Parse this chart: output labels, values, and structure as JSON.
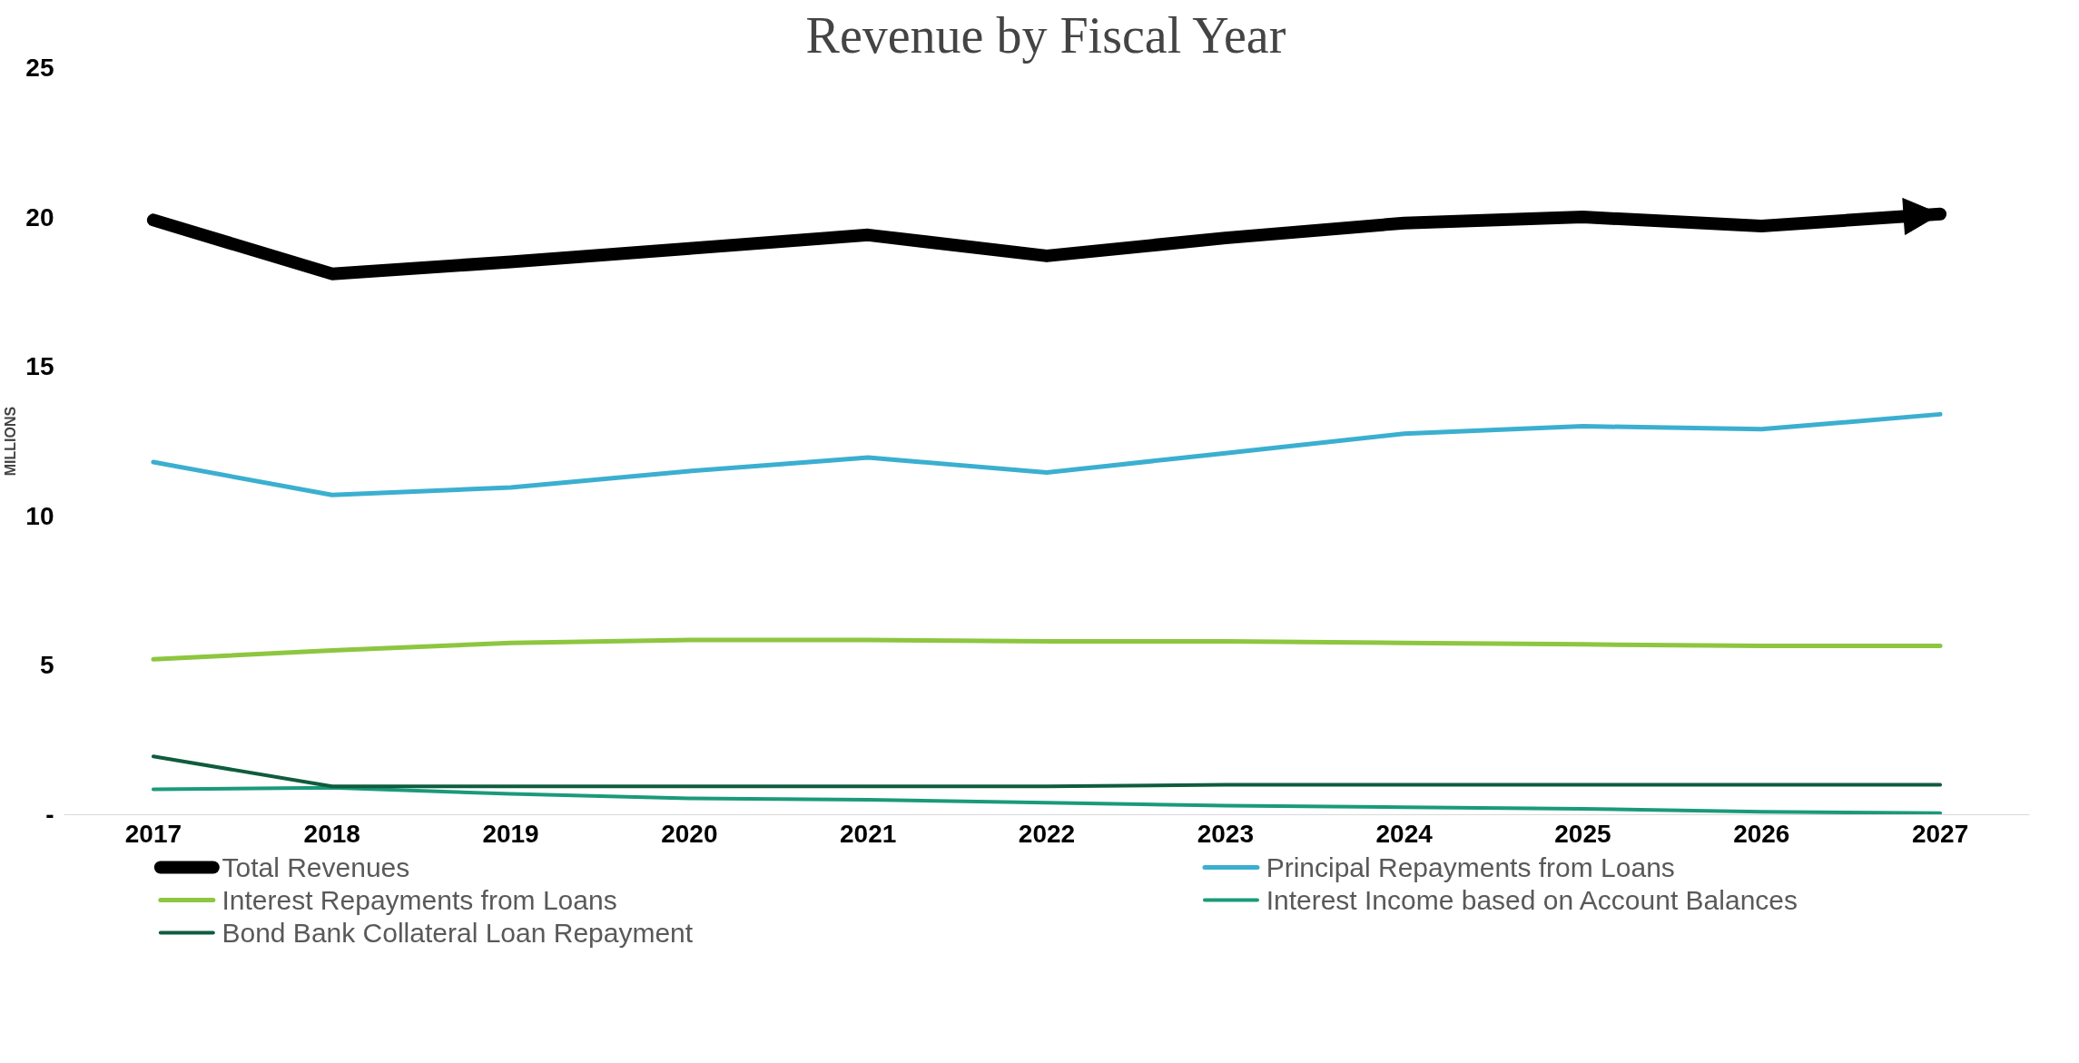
{
  "chart_data": {
    "type": "line",
    "title": "Revenue by Fiscal Year",
    "ylabel": "MILLIONS",
    "categories": [
      "2017",
      "2018",
      "2019",
      "2020",
      "2021",
      "2022",
      "2023",
      "2024",
      "2025",
      "2026",
      "2027"
    ],
    "series": [
      {
        "name": "Total Revenues",
        "color": "#000000",
        "values": [
          19.9,
          18.1,
          18.5,
          18.95,
          19.4,
          18.7,
          19.3,
          19.8,
          20.0,
          19.7,
          20.1
        ]
      },
      {
        "name": "Principal Repayments from Loans",
        "color": "#3bafd0",
        "values": [
          11.8,
          10.7,
          10.95,
          11.5,
          11.95,
          11.45,
          12.1,
          12.75,
          13.0,
          12.9,
          13.4
        ]
      },
      {
        "name": "Interest Repayments from Loans",
        "color": "#8dc63f",
        "values": [
          5.2,
          5.5,
          5.75,
          5.85,
          5.85,
          5.8,
          5.8,
          5.75,
          5.7,
          5.65,
          5.65
        ]
      },
      {
        "name": "Interest Income based on Account Balances",
        "color": "#1a9a7a",
        "values": [
          0.85,
          0.9,
          0.7,
          0.55,
          0.5,
          0.4,
          0.3,
          0.25,
          0.2,
          0.1,
          0.05
        ]
      },
      {
        "name": "Bond Bank Collateral Loan Repayment",
        "color": "#0f5c3e",
        "values": [
          1.95,
          0.95,
          0.95,
          0.95,
          0.95,
          0.95,
          1.0,
          1.0,
          1.0,
          1.0,
          1.0
        ]
      }
    ],
    "ylim": [
      0,
      25
    ],
    "yticks": [
      {
        "value": 0,
        "label": "-"
      },
      5,
      10,
      15,
      20,
      25
    ],
    "grid": false,
    "legend": "bottom",
    "marker": "none",
    "line_style": "solid"
  }
}
